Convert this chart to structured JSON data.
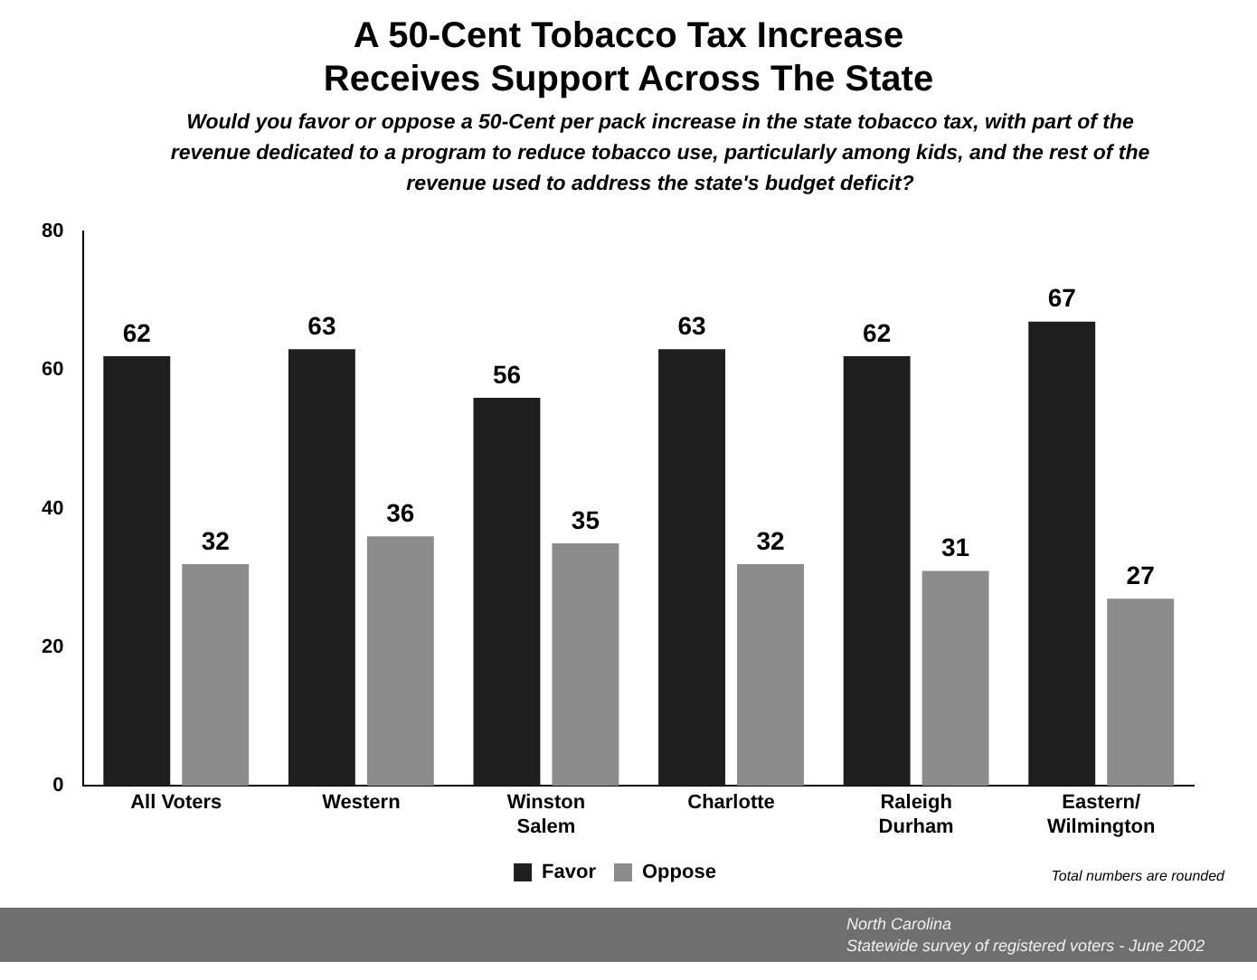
{
  "chart_data": {
    "type": "bar",
    "title": "A 50-Cent Tobacco Tax Increase\nReceives Support Across The State",
    "subtitle": "Would you favor or oppose a 50-Cent per pack increase in the state tobacco tax, with part of the revenue dedicated to a program to reduce tobacco use, particularly among kids, and the rest of the revenue used to address the state's budget deficit?",
    "categories": [
      "All Voters",
      "Western",
      "Winston\nSalem",
      "Charlotte",
      "Raleigh\nDurham",
      "Eastern/\nWilmington"
    ],
    "series": [
      {
        "name": "Favor",
        "color": "#1e1e1e",
        "values": [
          62,
          63,
          56,
          63,
          62,
          67
        ]
      },
      {
        "name": "Oppose",
        "color": "#8c8c8c",
        "values": [
          32,
          36,
          35,
          32,
          31,
          27
        ]
      }
    ],
    "ylim": [
      0,
      80
    ],
    "yticks": [
      0,
      20,
      40,
      60,
      80
    ],
    "grid": false,
    "legend": "bottom",
    "data_labels": true,
    "annotations": [
      "Total numbers are rounded",
      "North Carolina",
      "Statewide survey of registered voters - June 2002"
    ]
  }
}
